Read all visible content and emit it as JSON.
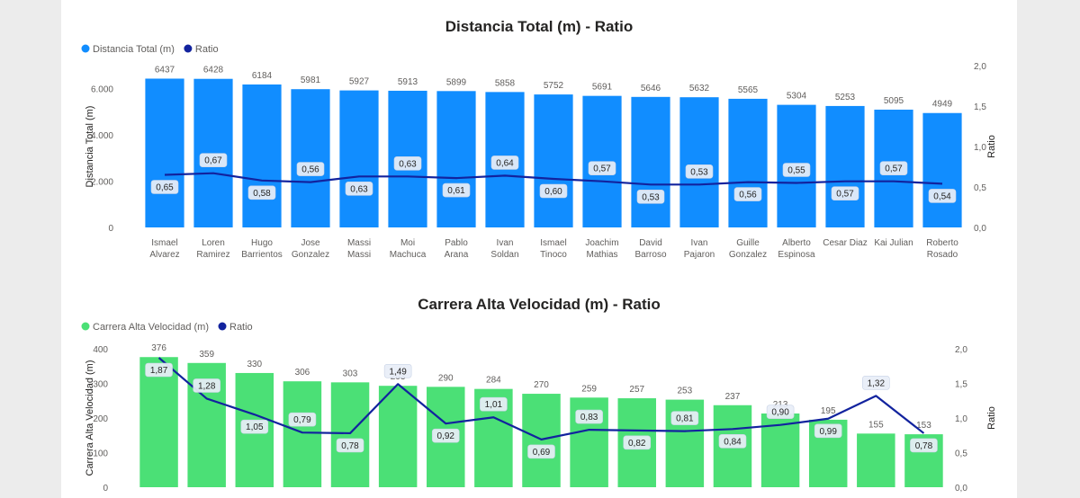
{
  "chart_data": [
    {
      "type": "bar",
      "title": "Distancia Total (m) - Ratio",
      "legend": [
        {
          "name": "Distancia Total (m)",
          "color": "#118dff"
        },
        {
          "name": "Ratio",
          "color": "#12239e"
        }
      ],
      "legend_position": "top-left",
      "ylabel": "Distancia Total (m)",
      "y2label": "Ratio",
      "ylim": [
        0,
        7000
      ],
      "y2lim": [
        0,
        2.0
      ],
      "yticks": [
        "0",
        "2.000",
        "4.000",
        "6.000"
      ],
      "yticks_values": [
        0,
        2000,
        4000,
        6000
      ],
      "y2ticks": [
        "0,0",
        "0,5",
        "1,0",
        "1,5",
        "2,0"
      ],
      "y2ticks_values": [
        0,
        0.5,
        1.0,
        1.5,
        2.0
      ],
      "categories": [
        [
          "Ismael",
          "Alvarez"
        ],
        [
          "Loren",
          "Ramirez"
        ],
        [
          "Hugo",
          "Barrientos"
        ],
        [
          "Jose",
          "Gonzalez"
        ],
        [
          "Massi",
          "Massi"
        ],
        [
          "Moi",
          "Machuca"
        ],
        [
          "Pablo",
          "Arana"
        ],
        [
          "Ivan",
          "Soldan"
        ],
        [
          "Ismael",
          "Tinoco"
        ],
        [
          "Joachim",
          "Mathias"
        ],
        [
          "David",
          "Barroso"
        ],
        [
          "Ivan",
          "Pajaron"
        ],
        [
          "Guille",
          "Gonzalez"
        ],
        [
          "Alberto",
          "Espinosa"
        ],
        [
          "Cesar Diaz"
        ],
        [
          "Kai Julian"
        ],
        [
          "Roberto",
          "Rosado"
        ]
      ],
      "series": [
        {
          "name": "Distancia Total (m)",
          "kind": "bar",
          "color": "#118dff",
          "values": [
            6437,
            6428,
            6184,
            5981,
            5927,
            5913,
            5899,
            5858,
            5752,
            5691,
            5646,
            5632,
            5565,
            5304,
            5253,
            5095,
            4949
          ],
          "labels": [
            "6437",
            "6428",
            "6184",
            "5981",
            "5927",
            "5913",
            "5899",
            "5858",
            "5752",
            "5691",
            "5646",
            "5632",
            "5565",
            "5304",
            "5253",
            "5095",
            "4949"
          ]
        },
        {
          "name": "Ratio",
          "kind": "line",
          "axis": "secondary",
          "color": "#12239e",
          "values": [
            0.65,
            0.67,
            0.58,
            0.56,
            0.63,
            0.63,
            0.61,
            0.64,
            0.6,
            0.57,
            0.53,
            0.53,
            0.56,
            0.55,
            0.57,
            0.57,
            0.54
          ],
          "labels": [
            "0,65",
            "0,67",
            "0,58",
            "0,56",
            "0,63",
            "0,63",
            "0,61",
            "0,64",
            "0,60",
            "0,57",
            "0,53",
            "0,53",
            "0,56",
            "0,55",
            "0,57",
            "0,57",
            "0,54"
          ]
        }
      ],
      "grid": false
    },
    {
      "type": "bar",
      "title": "Carrera Alta Velocidad (m) - Ratio",
      "legend": [
        {
          "name": "Carrera Alta Velocidad (m)",
          "color": "#4be076"
        },
        {
          "name": "Ratio",
          "color": "#12239e"
        }
      ],
      "legend_position": "top-left",
      "ylabel": "Carrera Alta Velocidad (m)",
      "y2label": "Ratio",
      "ylim": [
        0,
        400
      ],
      "y2lim": [
        0,
        2.0
      ],
      "yticks": [
        "0",
        "100",
        "200",
        "300",
        "400"
      ],
      "yticks_values": [
        0,
        100,
        200,
        300,
        400
      ],
      "y2ticks": [
        "0,0",
        "0,5",
        "1,0",
        "1,5",
        "2,0"
      ],
      "y2ticks_values": [
        0,
        0.5,
        1.0,
        1.5,
        2.0
      ],
      "series": [
        {
          "name": "Carrera Alta Velocidad (m)",
          "kind": "bar",
          "color": "#4be076",
          "values": [
            376,
            359,
            330,
            306,
            303,
            293,
            290,
            284,
            270,
            259,
            257,
            253,
            237,
            213,
            195,
            155,
            153
          ],
          "labels": [
            "376",
            "359",
            "330",
            "306",
            "303",
            "293",
            "290",
            "284",
            "270",
            "259",
            "257",
            "253",
            "237",
            "213",
            "195",
            "155",
            "153"
          ]
        },
        {
          "name": "Ratio",
          "kind": "line",
          "axis": "secondary",
          "color": "#12239e",
          "values": [
            1.87,
            1.28,
            1.05,
            0.79,
            0.78,
            1.49,
            0.92,
            1.01,
            0.69,
            0.83,
            0.82,
            0.81,
            0.84,
            0.9,
            0.99,
            1.32,
            0.78
          ],
          "labels": [
            "1,87",
            "1,28",
            "1,05",
            "0,79",
            "0,78",
            "1,49",
            "0,92",
            "1,01",
            "0,69",
            "0,83",
            "0,82",
            "0,81",
            "0,84",
            "0,90",
            "0,99",
            "1,32",
            "0,78"
          ]
        }
      ],
      "grid": false
    }
  ]
}
